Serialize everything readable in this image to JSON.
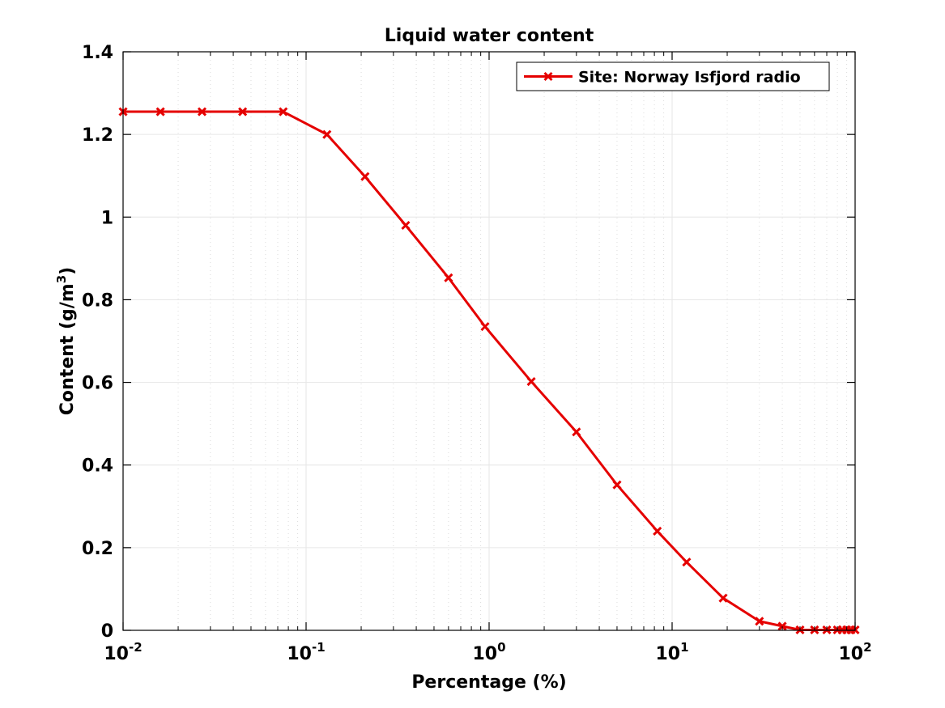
{
  "chart_data": {
    "type": "line",
    "title": "Liquid water content",
    "xlabel": "Percentage (%)",
    "ylabel": "Content (g/m",
    "ylabel_superscript": "3",
    "ylabel_suffix": ")",
    "xscale": "log",
    "xlim": [
      0.01,
      100
    ],
    "ylim": [
      0,
      1.4
    ],
    "grid": true,
    "legend_position": "top-right",
    "x_ticks": [
      {
        "value": 0.01,
        "base": "10",
        "exp": "-2"
      },
      {
        "value": 0.1,
        "base": "10",
        "exp": "-1"
      },
      {
        "value": 1,
        "base": "10",
        "exp": "0"
      },
      {
        "value": 10,
        "base": "10",
        "exp": "1"
      },
      {
        "value": 100,
        "base": "10",
        "exp": "2"
      }
    ],
    "y_ticks": [
      {
        "value": 0,
        "label": "0"
      },
      {
        "value": 0.2,
        "label": "0.2"
      },
      {
        "value": 0.4,
        "label": "0.4"
      },
      {
        "value": 0.6,
        "label": "0.6"
      },
      {
        "value": 0.8,
        "label": "0.8"
      },
      {
        "value": 1,
        "label": "1"
      },
      {
        "value": 1.2,
        "label": "1.2"
      },
      {
        "value": 1.4,
        "label": "1.4"
      }
    ],
    "series": [
      {
        "name": "Site: Norway Isfjord radio",
        "color": "#e50000",
        "marker": "x",
        "x": [
          0.01,
          0.016,
          0.027,
          0.045,
          0.075,
          0.13,
          0.21,
          0.35,
          0.6,
          0.95,
          1.7,
          3,
          5,
          8.3,
          12,
          19,
          30,
          40,
          50,
          60,
          70,
          80,
          85,
          90,
          95,
          100
        ],
        "y": [
          1.255,
          1.255,
          1.255,
          1.255,
          1.255,
          1.2,
          1.098,
          0.98,
          0.853,
          0.735,
          0.602,
          0.48,
          0.352,
          0.24,
          0.165,
          0.078,
          0.022,
          0.01,
          0.001,
          0.001,
          0.001,
          0.001,
          0.001,
          0.001,
          0.001,
          0.001
        ]
      }
    ]
  }
}
